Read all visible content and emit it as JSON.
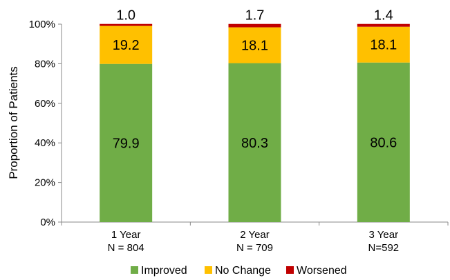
{
  "chart_data": {
    "type": "bar",
    "stacked": true,
    "orientation": "vertical",
    "title": "",
    "xlabel": "",
    "ylabel": "Proportion of Patients",
    "ylim": [
      0,
      100
    ],
    "y_ticks": [
      "0%",
      "20%",
      "40%",
      "60%",
      "80%",
      "100%"
    ],
    "categories": [
      {
        "line1": "1 Year",
        "line2": "N = 804"
      },
      {
        "line1": "2 Year",
        "line2": "N = 709"
      },
      {
        "line1": "3 Year",
        "line2": "N=592"
      }
    ],
    "series": [
      {
        "name": "Improved",
        "color": "#70ad47",
        "values": [
          79.9,
          80.3,
          80.6
        ],
        "labels": [
          "79.9",
          "80.3",
          "80.6"
        ]
      },
      {
        "name": "No Change",
        "color": "#ffc000",
        "values": [
          19.2,
          18.1,
          18.1
        ],
        "labels": [
          "19.2",
          "18.1",
          "18.1"
        ]
      },
      {
        "name": "Worsened",
        "color": "#c00000",
        "values": [
          1.0,
          1.7,
          1.4
        ],
        "labels": [
          "1.0",
          "1.7",
          "1.4"
        ]
      }
    ],
    "grid": false,
    "legend_position": "bottom"
  }
}
